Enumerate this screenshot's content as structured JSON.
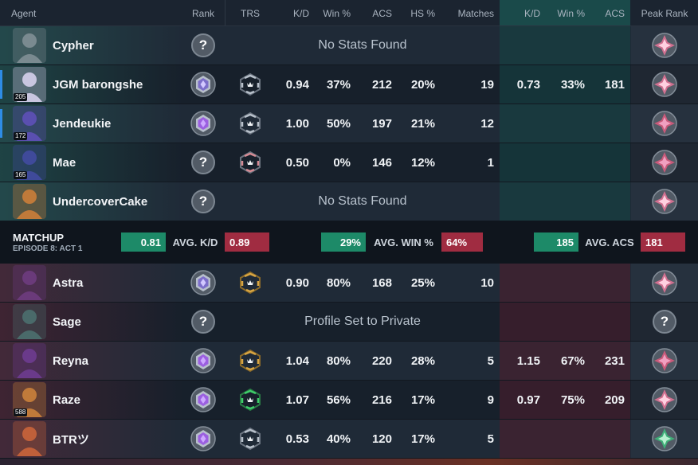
{
  "columns": {
    "agent": "Agent",
    "rank": "Rank",
    "trs": "TRS",
    "kd": "K/D",
    "win": "Win %",
    "acs": "ACS",
    "hs": "HS %",
    "matches": "Matches",
    "recent_kd": "K/D",
    "recent_win": "Win %",
    "recent_acs": "ACS",
    "peak_rank": "Peak Rank"
  },
  "team_blue": [
    {
      "agent": "Cypher",
      "level": "",
      "party": false,
      "rank_icon": "unknown-rank-icon",
      "trs": "",
      "kd": "",
      "win": "",
      "acs": "",
      "hs": "",
      "matches": "",
      "recent_kd": "",
      "recent_win": "",
      "recent_acs": "",
      "message": "No Stats Found",
      "peak_icon": "ascendant-rank-icon",
      "portrait_color": "#7a8a90"
    },
    {
      "agent": "JGM barongshe",
      "level": "205",
      "party": true,
      "rank_icon": "platinum-rank-icon",
      "trs": "silver",
      "kd": "0.94",
      "win": "37%",
      "acs": "212",
      "hs": "20%",
      "matches": "19",
      "recent_kd": "0.73",
      "recent_win": "33%",
      "recent_acs": "181",
      "message": "",
      "peak_icon": "ascendant-rank-icon",
      "portrait_color": "#c9c6e0"
    },
    {
      "agent": "Jendeukie",
      "level": "172",
      "party": true,
      "rank_icon": "diamond-rank-icon",
      "trs": "silver",
      "kd": "1.00",
      "win": "50%",
      "acs": "197",
      "hs": "21%",
      "matches": "12",
      "recent_kd": "",
      "recent_win": "",
      "recent_acs": "",
      "message": "",
      "peak_icon": "immortal-rank-icon",
      "portrait_color": "#5a4fb0"
    },
    {
      "agent": "Mae",
      "level": "165",
      "party": false,
      "rank_icon": "unknown-rank-icon",
      "trs": "red",
      "kd": "0.50",
      "win": "0%",
      "acs": "146",
      "hs": "12%",
      "matches": "1",
      "recent_kd": "",
      "recent_win": "",
      "recent_acs": "",
      "message": "",
      "peak_icon": "immortal-rank-icon",
      "portrait_color": "#3f4a9a"
    },
    {
      "agent": "UndercoverCake",
      "level": "",
      "party": false,
      "rank_icon": "unknown-rank-icon",
      "trs": "",
      "kd": "",
      "win": "",
      "acs": "",
      "hs": "",
      "matches": "",
      "recent_kd": "",
      "recent_win": "",
      "recent_acs": "",
      "message": "No Stats Found",
      "peak_icon": "ascendant-rank-icon",
      "portrait_color": "#c07a3a"
    }
  ],
  "matchup": {
    "title": "MATCHUP",
    "subtitle": "EPISODE 8: ACT 1",
    "kd_blue": "0.81",
    "kd_label": "AVG. K/D",
    "kd_red": "0.89",
    "win_blue": "29%",
    "win_label": "AVG. WIN %",
    "win_red": "64%",
    "acs_blue": "185",
    "acs_label": "AVG. ACS",
    "acs_red": "181"
  },
  "team_red": [
    {
      "agent": "Astra",
      "level": "",
      "party": false,
      "rank_icon": "platinum-rank-icon",
      "trs": "gold",
      "kd": "0.90",
      "win": "80%",
      "acs": "168",
      "hs": "25%",
      "matches": "10",
      "recent_kd": "",
      "recent_win": "",
      "recent_acs": "",
      "message": "",
      "peak_icon": "ascendant-rank-icon",
      "portrait_color": "#6a3a7a"
    },
    {
      "agent": "Sage",
      "level": "",
      "party": false,
      "rank_icon": "unknown-rank-icon",
      "trs": "",
      "kd": "",
      "win": "",
      "acs": "",
      "hs": "",
      "matches": "",
      "recent_kd": "",
      "recent_win": "",
      "recent_acs": "",
      "message": "Profile Set to Private",
      "peak_icon": "unknown-rank-icon",
      "portrait_color": "#4a6a6a"
    },
    {
      "agent": "Reyna",
      "level": "",
      "party": false,
      "rank_icon": "diamond-rank-icon",
      "trs": "gold",
      "kd": "1.04",
      "win": "80%",
      "acs": "220",
      "hs": "28%",
      "matches": "5",
      "recent_kd": "1.15",
      "recent_win": "67%",
      "recent_acs": "231",
      "message": "",
      "peak_icon": "immortal-rank-icon",
      "portrait_color": "#6a3a8a"
    },
    {
      "agent": "Raze",
      "level": "588",
      "party": false,
      "rank_icon": "diamond-rank-icon",
      "trs": "green",
      "kd": "1.07",
      "win": "56%",
      "acs": "216",
      "hs": "17%",
      "matches": "9",
      "recent_kd": "0.97",
      "recent_win": "75%",
      "recent_acs": "209",
      "message": "",
      "peak_icon": "ascendant-rank-icon",
      "portrait_color": "#c07a3a"
    },
    {
      "agent": "BTRツ",
      "level": "",
      "party": false,
      "rank_icon": "diamond-rank-icon",
      "trs": "silver",
      "kd": "0.53",
      "win": "40%",
      "acs": "120",
      "hs": "17%",
      "matches": "5",
      "recent_kd": "",
      "recent_win": "",
      "recent_acs": "",
      "message": "",
      "peak_icon": "radiant-green-rank-icon",
      "portrait_color": "#c0603a"
    }
  ],
  "colors": {
    "accent_green": "#1d8a68",
    "accent_red": "#a02c41",
    "party_blue": "#2e8ce6"
  }
}
